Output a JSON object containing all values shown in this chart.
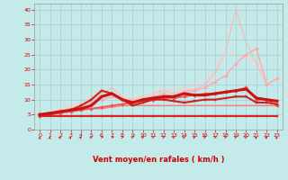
{
  "xlabel": "Vent moyen/en rafales ( km/h )",
  "xlim": [
    -0.5,
    23.5
  ],
  "ylim": [
    0,
    42
  ],
  "yticks": [
    0,
    5,
    10,
    15,
    20,
    25,
    30,
    35,
    40
  ],
  "xticks": [
    0,
    1,
    2,
    3,
    4,
    5,
    6,
    7,
    8,
    9,
    10,
    11,
    12,
    13,
    14,
    15,
    16,
    17,
    18,
    19,
    20,
    21,
    22,
    23
  ],
  "background_color": "#c5eaea",
  "grid_color": "#aad4d4",
  "lines": [
    {
      "x": [
        0,
        1,
        2,
        3,
        4,
        5,
        6,
        7,
        8,
        9,
        10,
        11,
        12,
        13,
        14,
        15,
        16,
        17,
        18,
        19,
        20,
        21,
        22,
        23
      ],
      "y": [
        4.5,
        4.5,
        4.5,
        4.5,
        4.5,
        4.5,
        4.5,
        4.5,
        4.5,
        4.5,
        4.5,
        4.5,
        4.5,
        4.5,
        4.5,
        4.5,
        4.5,
        4.5,
        4.5,
        4.5,
        4.5,
        4.5,
        4.5,
        4.5
      ],
      "color": "#dd2222",
      "linewidth": 1.5,
      "marker": "s",
      "markersize": 2,
      "zorder": 5
    },
    {
      "x": [
        0,
        1,
        2,
        3,
        4,
        5,
        6,
        7,
        8,
        9,
        10,
        11,
        12,
        13,
        14,
        15,
        16,
        17,
        18,
        19,
        20,
        21,
        22,
        23
      ],
      "y": [
        4.5,
        5,
        5.5,
        6,
        6.5,
        7,
        7.5,
        8,
        8.5,
        9,
        9.5,
        10,
        10.5,
        10.5,
        11,
        11.5,
        12,
        12,
        12.5,
        13,
        14,
        10,
        10,
        8
      ],
      "color": "#ee5555",
      "linewidth": 1.2,
      "marker": "D",
      "markersize": 2,
      "zorder": 4
    },
    {
      "x": [
        0,
        1,
        2,
        3,
        4,
        5,
        6,
        7,
        8,
        9,
        10,
        11,
        12,
        13,
        14,
        15,
        16,
        17,
        18,
        19,
        20,
        21,
        22,
        23
      ],
      "y": [
        5,
        5.5,
        6,
        6.5,
        7,
        7,
        7,
        7.5,
        8,
        8,
        8,
        8,
        8,
        8,
        8,
        8,
        8,
        8,
        8,
        8,
        8,
        8,
        8,
        8
      ],
      "color": "#ff7777",
      "linewidth": 1.0,
      "marker": null,
      "markersize": 0,
      "zorder": 3
    },
    {
      "x": [
        0,
        1,
        2,
        3,
        4,
        5,
        6,
        7,
        8,
        9,
        10,
        11,
        12,
        13,
        14,
        15,
        16,
        17,
        18,
        19,
        20,
        21,
        22,
        23
      ],
      "y": [
        5,
        5.5,
        6,
        6.5,
        7,
        8,
        11,
        12,
        10,
        9,
        10,
        10.5,
        11,
        11,
        12,
        11.5,
        11.5,
        12,
        12.5,
        13,
        13.5,
        10.5,
        10,
        9.5
      ],
      "color": "#cc1111",
      "linewidth": 2.2,
      "marker": "s",
      "markersize": 2,
      "zorder": 7
    },
    {
      "x": [
        0,
        1,
        2,
        3,
        4,
        5,
        6,
        7,
        8,
        9,
        10,
        11,
        12,
        13,
        14,
        15,
        16,
        17,
        18,
        19,
        20,
        21,
        22,
        23
      ],
      "y": [
        5,
        5,
        6,
        6.5,
        8,
        10,
        13,
        12,
        10,
        8,
        9,
        10,
        10,
        9.5,
        9,
        9.5,
        10,
        10,
        10.5,
        11,
        11,
        9,
        9,
        8.5
      ],
      "color": "#cc2222",
      "linewidth": 1.5,
      "marker": "s",
      "markersize": 2,
      "zorder": 6
    },
    {
      "x": [
        0,
        1,
        2,
        3,
        4,
        5,
        6,
        7,
        8,
        9,
        10,
        11,
        12,
        13,
        14,
        15,
        16,
        17,
        18,
        19,
        20,
        21,
        22,
        23
      ],
      "y": [
        5,
        5.5,
        6,
        7,
        8,
        9,
        10,
        11,
        10,
        9.5,
        10,
        11,
        12,
        11,
        12.5,
        13,
        14,
        16,
        18,
        22,
        25,
        27,
        15,
        17
      ],
      "color": "#ffaaaa",
      "linewidth": 1.0,
      "marker": "D",
      "markersize": 2,
      "zorder": 2
    },
    {
      "x": [
        0,
        1,
        2,
        3,
        4,
        5,
        6,
        7,
        8,
        9,
        10,
        11,
        12,
        13,
        14,
        15,
        16,
        17,
        18,
        19,
        20,
        21,
        22,
        23
      ],
      "y": [
        5,
        5.5,
        6.5,
        7,
        8,
        9.5,
        12,
        14,
        11,
        10,
        11,
        12,
        13,
        12,
        13,
        13.5,
        15,
        19,
        26,
        40,
        29,
        22,
        15,
        17
      ],
      "color": "#ffbbbb",
      "linewidth": 1.0,
      "marker": null,
      "markersize": 0,
      "zorder": 1
    },
    {
      "x": [
        0,
        1,
        2,
        3,
        4,
        5,
        6,
        7,
        8,
        9,
        10,
        11,
        12,
        13,
        14,
        15,
        16,
        17,
        18,
        19,
        20,
        21,
        22,
        23
      ],
      "y": [
        5,
        5.5,
        7,
        8,
        9,
        11,
        13,
        12,
        11,
        10.5,
        11,
        12,
        14,
        13,
        14,
        15,
        16,
        20,
        26,
        25,
        24,
        23,
        15,
        17
      ],
      "color": "#ffcccc",
      "linewidth": 1.0,
      "marker": null,
      "markersize": 0,
      "zorder": 1
    }
  ],
  "arrow_angles_deg": [
    90,
    85,
    75,
    80,
    75,
    65,
    40,
    30,
    50,
    60,
    65,
    60,
    55,
    65,
    65,
    65,
    60,
    55,
    55,
    60,
    65,
    75,
    75,
    80
  ]
}
